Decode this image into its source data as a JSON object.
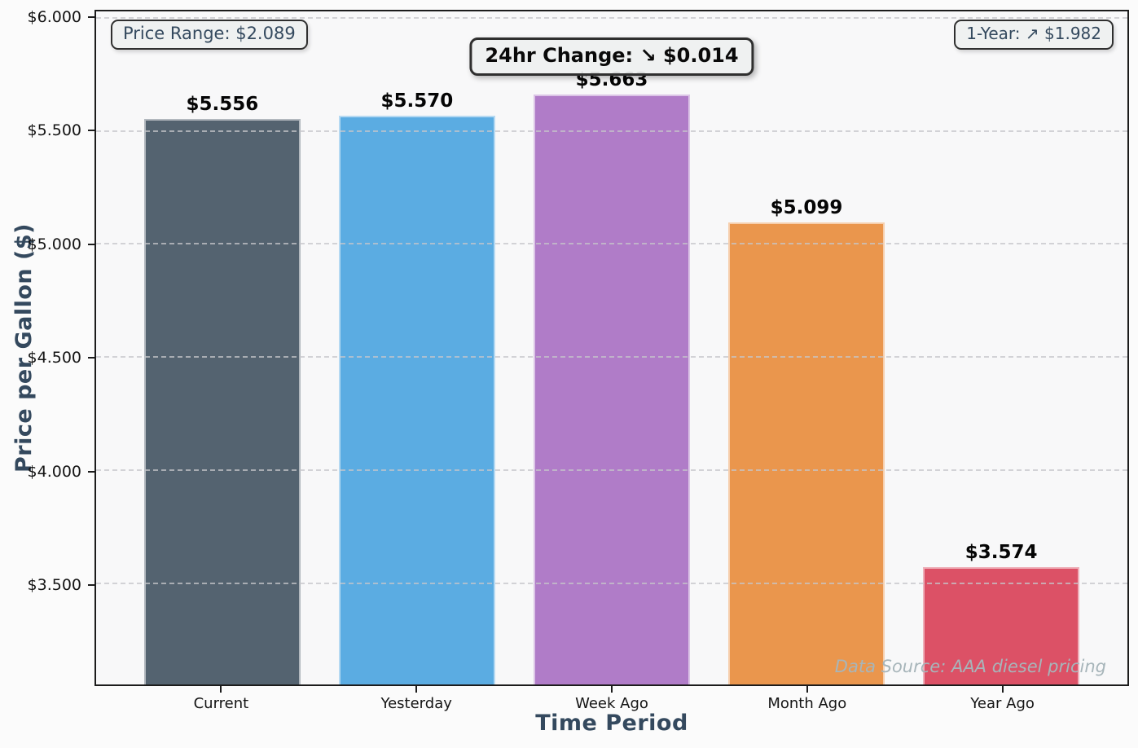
{
  "chart_data": {
    "type": "bar",
    "title": "",
    "xlabel": "Time Period",
    "ylabel": "Price per Gallon ($)",
    "categories": [
      "Current",
      "Yesterday",
      "Week Ago",
      "Month Ago",
      "Year Ago"
    ],
    "values": [
      5.556,
      5.57,
      5.663,
      5.099,
      3.574
    ],
    "value_labels": [
      "$5.556",
      "$5.570",
      "$5.663",
      "$5.099",
      "$3.574"
    ],
    "bar_colors": [
      "#546370",
      "#5BACE2",
      "#B07CC8",
      "#EA964D",
      "#DC5166"
    ],
    "ylim": [
      3.055,
      6.032
    ],
    "yticks": [
      3.5,
      4.0,
      4.5,
      5.0,
      5.5,
      6.0
    ],
    "ytick_labels": [
      "$3.500",
      "$4.000",
      "$4.500",
      "$5.000",
      "$5.500",
      "$6.000"
    ],
    "grid": "horizontal-dashed",
    "legend": "none",
    "bar_width_units": 0.8,
    "x_margin_units": 0.648,
    "annotations": [
      {
        "id": "price-range",
        "text": "Price Range: $2.089",
        "position": "top-left"
      },
      {
        "id": "24hr-change",
        "text": "24hr Change: ↘ $0.014",
        "position": "top-center"
      },
      {
        "id": "one-year",
        "text": "1-Year: ↗ $1.982",
        "position": "top-right"
      },
      {
        "id": "data-source",
        "text": "Data Source: AAA diesel pricing",
        "position": "bottom-right"
      }
    ]
  },
  "colors": {
    "figure_bg": "#fbfbfb",
    "plot_bg": "#f8f8f9",
    "axis_title": "#34495e",
    "annotation_text": "#34495e",
    "change_box_text": "#0a0a0a",
    "watermark_text": "#a7b5ba",
    "grid": "#c6c6ca",
    "spine": "#1c1c1c"
  }
}
